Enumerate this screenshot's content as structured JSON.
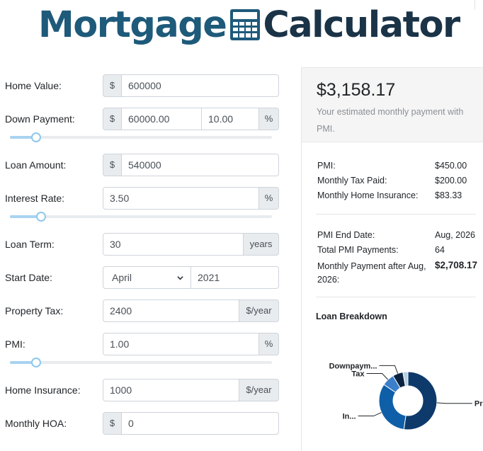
{
  "logo": {
    "word1": "Mortgage",
    "word2": "Calculator",
    "icon": "calculator-icon"
  },
  "form": {
    "home_value": {
      "label": "Home Value:",
      "prefix": "$",
      "value": "600000"
    },
    "down_payment": {
      "label": "Down Payment:",
      "prefix": "$",
      "amount": "60000.00",
      "percent": "10.00",
      "suffix": "%",
      "slider_fraction": 0.1
    },
    "loan_amount": {
      "label": "Loan Amount:",
      "prefix": "$",
      "value": "540000"
    },
    "interest_rate": {
      "label": "Interest Rate:",
      "value": "3.50",
      "suffix": "%",
      "slider_fraction": 0.12
    },
    "loan_term": {
      "label": "Loan Term:",
      "value": "30",
      "suffix": "years"
    },
    "start_date": {
      "label": "Start Date:",
      "month": "April",
      "year": "2021"
    },
    "property_tax": {
      "label": "Property Tax:",
      "value": "2400",
      "suffix": "$/year"
    },
    "pmi": {
      "label": "PMI:",
      "value": "1.00",
      "suffix": "%",
      "slider_fraction": 0.1
    },
    "home_insurance": {
      "label": "Home Insurance:",
      "value": "1000",
      "suffix": "$/year"
    },
    "monthly_hoa": {
      "label": "Monthly HOA:",
      "prefix": "$",
      "value": "0"
    }
  },
  "summary": {
    "payment": "$3,158.17",
    "subtitle": "Your estimated monthly payment with PMI.",
    "details": [
      {
        "label": "PMI:",
        "value": "$450.00"
      },
      {
        "label": "Monthly Tax Paid:",
        "value": "$200.00"
      },
      {
        "label": "Monthly Home Insurance:",
        "value": "$83.33"
      }
    ],
    "pmi_info": [
      {
        "label": "PMI End Date:",
        "value": "Aug, 2026"
      },
      {
        "label": "Total PMI Payments:",
        "value": "64"
      },
      {
        "label": "Monthly Payment after Aug, 2026:",
        "value": "$2,708.17"
      }
    ],
    "breakdown_title": "Loan Breakdown"
  },
  "chart_data": {
    "type": "pie",
    "title": "Loan Breakdown",
    "slices": [
      {
        "label": "Pri...",
        "value": 540000,
        "color": "#0d3a6b"
      },
      {
        "label": "In...",
        "value": 332697,
        "color": "#0e5fa8"
      },
      {
        "label": "Tax",
        "value": 72000,
        "color": "#3b7ec9"
      },
      {
        "label": "Downpaym...",
        "value": 60000,
        "color": "#0c2340"
      },
      {
        "label": "",
        "value": 28800,
        "color": "#b9cfe2"
      }
    ]
  },
  "colors": {
    "slider_fill": "#a8d3f0",
    "logo_blue": "#1e5a7a",
    "logo_dark": "#1b3347"
  }
}
